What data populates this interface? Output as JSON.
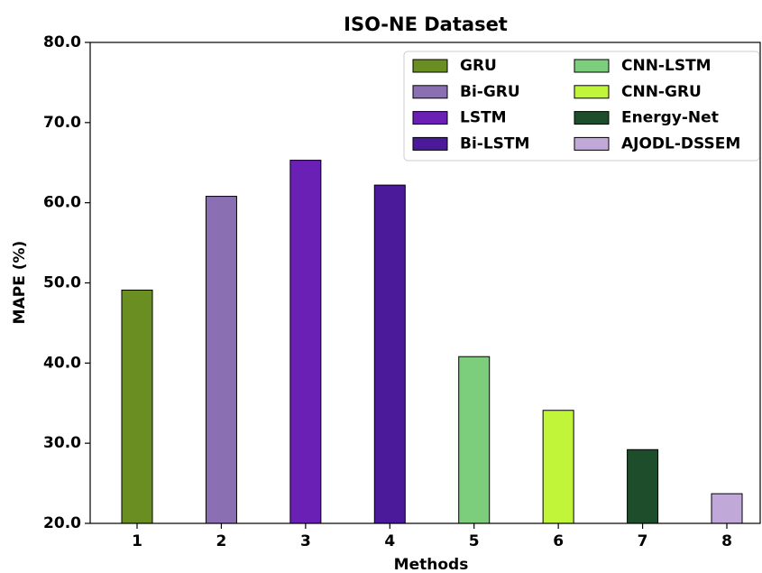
{
  "chart_data": {
    "type": "bar",
    "title": "ISO-NE Dataset",
    "xlabel": "Methods",
    "ylabel": "MAPE (%)",
    "categories": [
      "1",
      "2",
      "3",
      "4",
      "5",
      "6",
      "7",
      "8"
    ],
    "series": [
      {
        "name": "GRU",
        "color": "#6b8e23",
        "values": [
          49.1,
          null,
          null,
          null,
          null,
          null,
          null,
          null
        ]
      },
      {
        "name": "Bi-GRU",
        "color": "#8a6fb3",
        "values": [
          null,
          60.8,
          null,
          null,
          null,
          null,
          null,
          null
        ]
      },
      {
        "name": "LSTM",
        "color": "#6a1fb5",
        "values": [
          null,
          null,
          65.3,
          null,
          null,
          null,
          null,
          null
        ]
      },
      {
        "name": "Bi-LSTM",
        "color": "#4b1a9a",
        "values": [
          null,
          null,
          null,
          62.2,
          null,
          null,
          null,
          null
        ]
      },
      {
        "name": "CNN-LSTM",
        "color": "#7ccd7c",
        "values": [
          null,
          null,
          null,
          null,
          40.8,
          null,
          null,
          null
        ]
      },
      {
        "name": "CNN-GRU",
        "color": "#c0f53a",
        "values": [
          null,
          null,
          null,
          null,
          null,
          34.1,
          null,
          null
        ]
      },
      {
        "name": "Energy-Net",
        "color": "#1e4d2b",
        "values": [
          null,
          null,
          null,
          null,
          null,
          null,
          29.2,
          null
        ]
      },
      {
        "name": "AJODL-DSSEM",
        "color": "#c0a8d8",
        "values": [
          null,
          null,
          null,
          null,
          null,
          null,
          null,
          23.7
        ]
      }
    ],
    "ylim": [
      20,
      80
    ],
    "yticks": [
      {
        "value": 20,
        "label": "20.0"
      },
      {
        "value": 30,
        "label": "30.0"
      },
      {
        "value": 40,
        "label": "40.0"
      },
      {
        "value": 50,
        "label": "50.0"
      },
      {
        "value": 60,
        "label": "60.0"
      },
      {
        "value": 70,
        "label": "70.0"
      },
      {
        "value": 80,
        "label": "80.0"
      }
    ],
    "legend": "upper right"
  }
}
